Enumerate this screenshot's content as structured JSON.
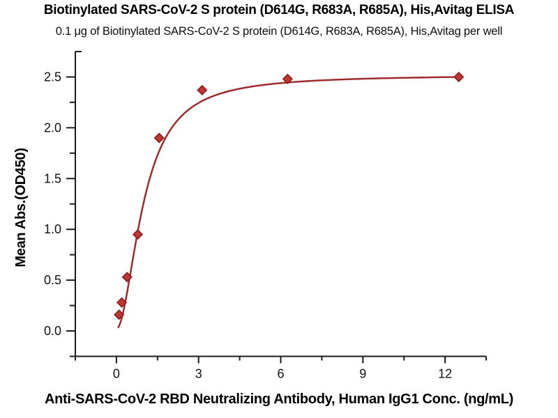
{
  "chart_data": {
    "type": "scatter",
    "title": "Biotinylated SARS-CoV-2 S protein (D614G, R683A, R685A), His,Avitag ELISA",
    "subtitle": "0.1 μg of Biotinylated SARS-CoV-2 S protein (D614G, R683A, R685A), His,Avitag per well",
    "xlabel": "Anti-SARS-CoV-2 RBD Neutralizing Antibody, Human IgG1 Conc. (ng/mL)",
    "ylabel": "Mean Abs.(OD450)",
    "x": [
      0.098,
      0.195,
      0.39,
      0.78,
      1.56,
      3.13,
      6.25,
      12.5
    ],
    "y": [
      0.16,
      0.28,
      0.53,
      0.95,
      1.9,
      2.37,
      2.48,
      2.5
    ],
    "xlim": [
      -1.5,
      13.5
    ],
    "ylim": [
      -0.25,
      2.75
    ],
    "xticks": [
      0,
      3,
      6,
      9,
      12
    ],
    "xtick_labels": [
      "0",
      "3",
      "6",
      "9",
      "12"
    ],
    "xticks_minor": [
      -1.5,
      1.5,
      4.5,
      7.5,
      10.5,
      13.5
    ],
    "yticks": [
      0,
      0.5,
      1,
      1.5,
      2,
      2.5
    ],
    "ytick_labels": [
      "0.0",
      "0.5",
      "1.0",
      "1.5",
      "2.0",
      "2.5"
    ],
    "yticks_minor": [
      -0.25,
      0.25,
      0.75,
      1.25,
      1.75,
      2.25
    ],
    "y_axis_end_cap": 2.75,
    "grid": false,
    "legend": false,
    "marker_shape": "diamond",
    "fit_curve": {
      "model": "4PL",
      "bottom": 0.02,
      "top": 2.52,
      "ec50": 1.0,
      "hill": 1.9,
      "x_range": [
        0.07,
        12.5
      ]
    },
    "colors": {
      "curve": "#9e2c2c",
      "marker_fill": "#bf3434",
      "marker_edge": "#8a2020",
      "axis": "#1b1b1b",
      "tick_text": "#111111"
    }
  }
}
